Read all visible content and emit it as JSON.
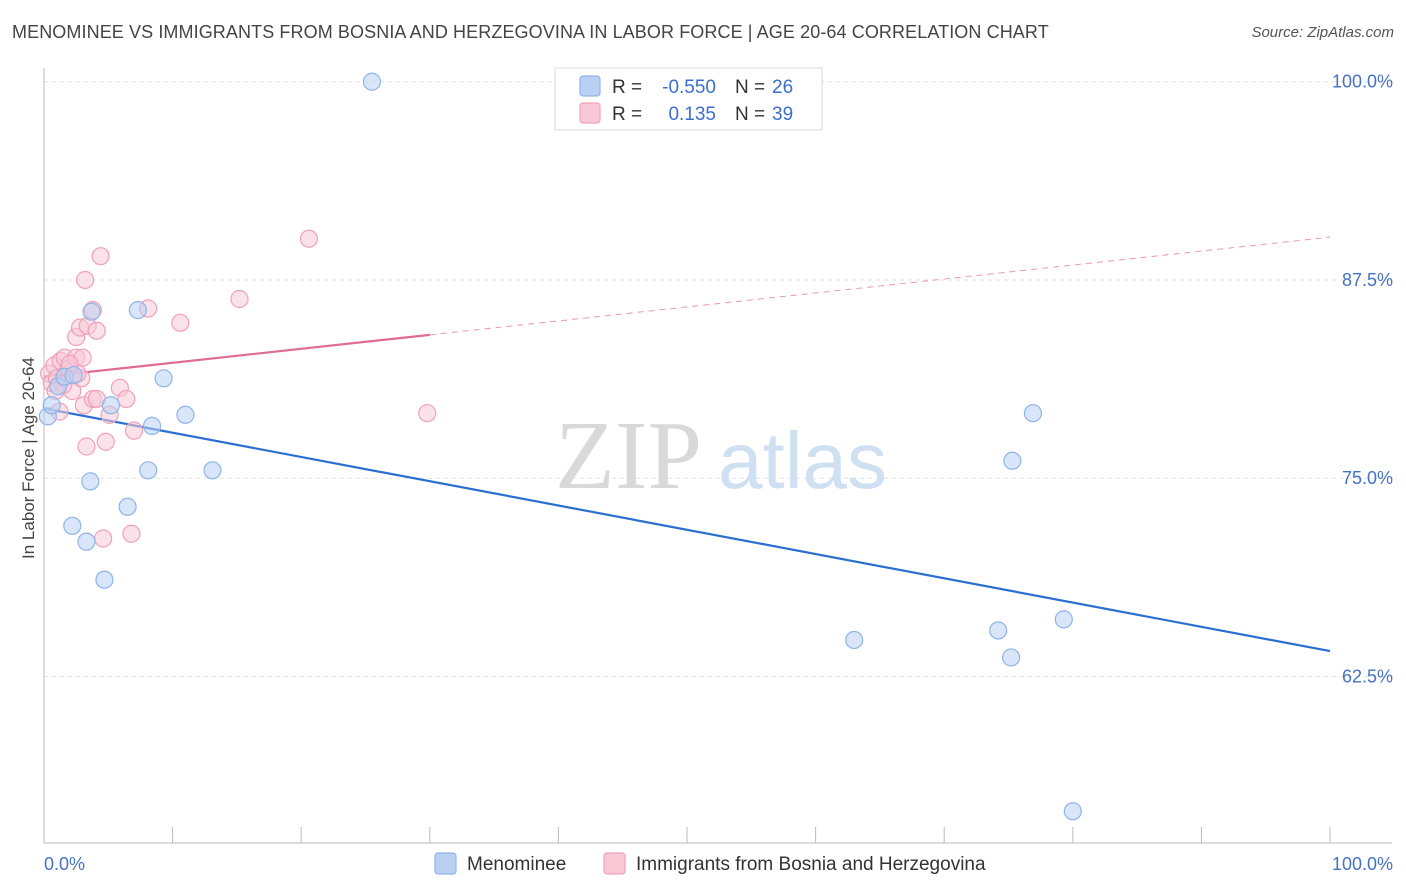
{
  "title": "MENOMINEE VS IMMIGRANTS FROM BOSNIA AND HERZEGOVINA IN LABOR FORCE | AGE 20-64 CORRELATION CHART",
  "source": "Source: ZipAtlas.com",
  "watermark": {
    "zip": "ZIP",
    "atlas": "atlas"
  },
  "chart_data": {
    "type": "scatter",
    "title": "MENOMINEE VS IMMIGRANTS FROM BOSNIA AND HERZEGOVINA IN LABOR FORCE | AGE 20-64 CORRELATION CHART",
    "xlabel": "",
    "ylabel": "In Labor Force | Age 20-64",
    "xlim": [
      0,
      100
    ],
    "ylim": [
      52,
      102
    ],
    "x_ticks": [
      "0.0%",
      "100.0%"
    ],
    "y_ticks": [
      {
        "value": 100.0,
        "label": "100.0%"
      },
      {
        "value": 87.5,
        "label": "87.5%"
      },
      {
        "value": 75.0,
        "label": "75.0%"
      },
      {
        "value": 62.5,
        "label": "62.5%"
      }
    ],
    "grid": true,
    "legend": [
      {
        "name": "Menominee",
        "r_label": "R =",
        "r_value": "-0.550",
        "n_label": "N =",
        "n_value": "26",
        "color": "#8fb4e8",
        "fill": "#b9d0f2"
      },
      {
        "name": "Immigrants from Bosnia and Herzegovina",
        "r_label": "R =",
        "r_value": "0.135",
        "n_label": "N =",
        "n_value": "39",
        "color": "#f0a0bb",
        "fill": "#f8c8d6"
      }
    ],
    "series": [
      {
        "name": "Menominee",
        "color": "#8fb4e8",
        "trend_color": "#2a6fd0",
        "trend": {
          "x0": 0,
          "y0": 79.4,
          "x1": 100,
          "y1": 64.1,
          "dashed_from": null
        },
        "points": [
          [
            0.3,
            78.9
          ],
          [
            0.6,
            79.6
          ],
          [
            1.1,
            80.8
          ],
          [
            1.6,
            81.4
          ],
          [
            2.3,
            81.5
          ],
          [
            5.2,
            79.6
          ],
          [
            3.7,
            85.5
          ],
          [
            8.4,
            78.3
          ],
          [
            11.0,
            79.0
          ],
          [
            7.3,
            85.6
          ],
          [
            9.3,
            81.3
          ],
          [
            8.1,
            75.5
          ],
          [
            13.1,
            75.5
          ],
          [
            3.6,
            74.8
          ],
          [
            6.5,
            73.2
          ],
          [
            2.2,
            72.0
          ],
          [
            3.3,
            71.0
          ],
          [
            4.7,
            68.6
          ],
          [
            25.5,
            100.0
          ],
          [
            75.3,
            76.1
          ],
          [
            76.9,
            79.1
          ],
          [
            79.3,
            66.1
          ],
          [
            63.0,
            64.8
          ],
          [
            74.2,
            65.4
          ],
          [
            75.2,
            63.7
          ],
          [
            80.0,
            54.0
          ]
        ]
      },
      {
        "name": "Immigrants from Bosnia and Herzegovina",
        "color": "#f0a0bb",
        "trend_color": "#e06b93",
        "trend": {
          "x0": 0,
          "y0": 81.4,
          "x1": 100,
          "y1": 90.2,
          "dashed_from": 30
        },
        "points": [
          [
            0.4,
            81.6
          ],
          [
            0.6,
            81.0
          ],
          [
            0.8,
            82.1
          ],
          [
            1.0,
            81.3
          ],
          [
            1.3,
            82.4
          ],
          [
            1.6,
            82.6
          ],
          [
            1.9,
            81.9
          ],
          [
            2.2,
            80.5
          ],
          [
            2.5,
            82.6
          ],
          [
            2.9,
            81.3
          ],
          [
            1.2,
            79.2
          ],
          [
            3.1,
            79.6
          ],
          [
            3.8,
            80.0
          ],
          [
            4.1,
            80.0
          ],
          [
            5.1,
            79.0
          ],
          [
            5.9,
            80.7
          ],
          [
            6.4,
            80.0
          ],
          [
            7.0,
            78.0
          ],
          [
            4.8,
            77.3
          ],
          [
            2.5,
            83.9
          ],
          [
            2.8,
            84.5
          ],
          [
            3.4,
            84.6
          ],
          [
            3.8,
            85.6
          ],
          [
            4.1,
            84.3
          ],
          [
            8.1,
            85.7
          ],
          [
            10.6,
            84.8
          ],
          [
            3.2,
            87.5
          ],
          [
            4.4,
            89.0
          ],
          [
            15.2,
            86.3
          ],
          [
            20.6,
            90.1
          ],
          [
            29.8,
            79.1
          ],
          [
            3.3,
            77.0
          ],
          [
            4.6,
            71.2
          ],
          [
            6.8,
            71.5
          ],
          [
            2.6,
            81.6
          ],
          [
            1.5,
            80.9
          ],
          [
            0.9,
            80.5
          ],
          [
            3.0,
            82.6
          ],
          [
            2.0,
            82.2
          ]
        ]
      }
    ]
  }
}
